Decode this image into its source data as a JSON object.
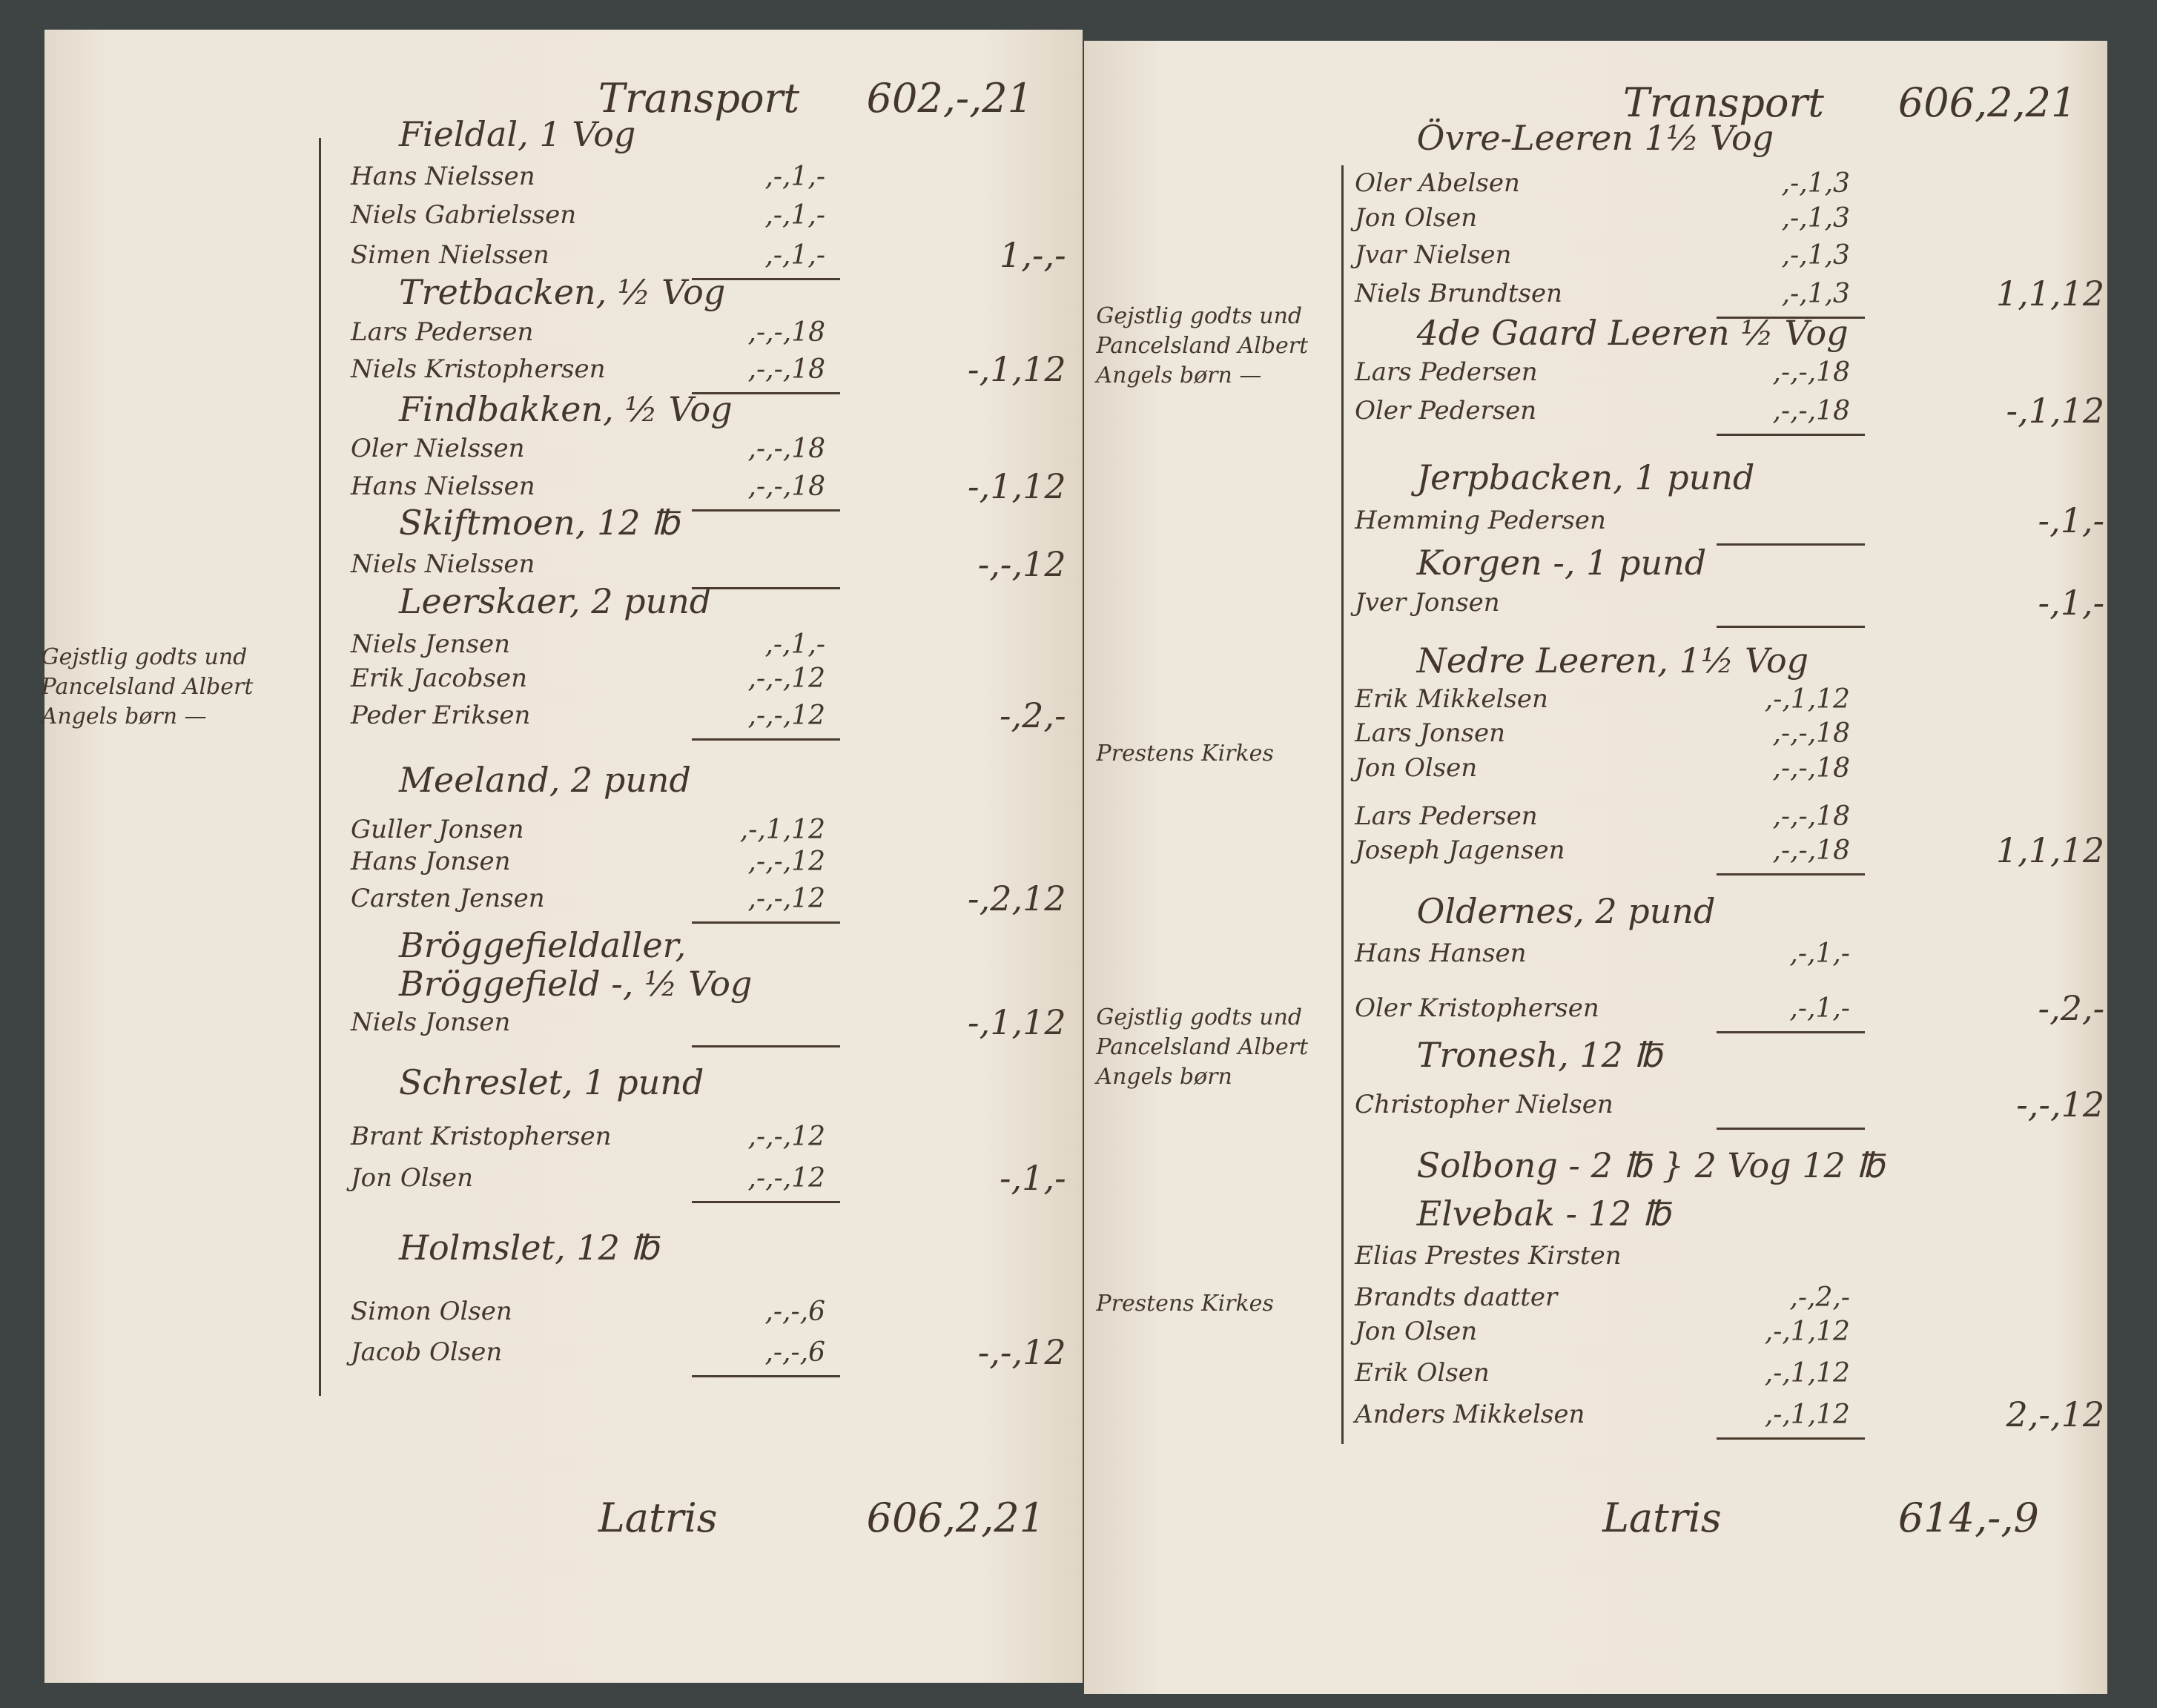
{
  "left_page": {
    "transport_label": "Transport",
    "transport_amount": "602,-,21",
    "rows": [
      {
        "type": "heading",
        "text": "Fieldal, 1 Vog"
      },
      {
        "type": "entry",
        "text": "Hans Nielssen",
        "amount": ",-,1,-"
      },
      {
        "type": "entry",
        "text": "Niels Gabrielssen",
        "amount": ",-,1,-"
      },
      {
        "type": "entry",
        "text": "Simen Nielssen",
        "amount": ",-,1,-",
        "subtotal": "1,-,-"
      },
      {
        "type": "heading",
        "text": "Tretbacken, ½ Vog"
      },
      {
        "type": "entry",
        "text": "Lars Pedersen",
        "amount": ",-,-,18"
      },
      {
        "type": "entry",
        "text": "Niels Kristophersen",
        "amount": ",-,-,18",
        "subtotal": "-,1,12"
      },
      {
        "type": "heading",
        "text": "Findbakken, ½ Vog"
      },
      {
        "type": "entry",
        "text": "Oler Nielssen",
        "amount": ",-,-,18"
      },
      {
        "type": "entry",
        "text": "Hans Nielssen",
        "amount": ",-,-,18",
        "subtotal": "-,1,12"
      },
      {
        "type": "heading",
        "text": "Skiftmoen, 12 ℔"
      },
      {
        "type": "entry",
        "text": "Niels Nielssen",
        "amount": "",
        "subtotal": "-,-,12"
      },
      {
        "type": "heading",
        "text": "Leerskaer, 2 pund"
      },
      {
        "type": "entry",
        "text": "Niels Jensen",
        "amount": ",-,1,-"
      },
      {
        "type": "entry",
        "text": "Erik Jacobsen",
        "amount": ",-,-,12"
      },
      {
        "type": "entry",
        "text": "Peder Eriksen",
        "amount": ",-,-,12",
        "subtotal": "-,2,-"
      },
      {
        "type": "heading",
        "text": "Meeland, 2 pund"
      },
      {
        "type": "entry",
        "text": "Guller Jonsen",
        "amount": ",-,1,12"
      },
      {
        "type": "entry",
        "text": "Hans Jonsen",
        "amount": ",-,-,12"
      },
      {
        "type": "entry",
        "text": "Carsten Jensen",
        "amount": ",-,-,12",
        "subtotal": "-,2,12"
      },
      {
        "type": "heading",
        "text": "Bröggefieldaller,"
      },
      {
        "type": "heading",
        "text": "Bröggefield  -, ½ Vog"
      },
      {
        "type": "entry",
        "text": "Niels Jonsen",
        "amount": "",
        "subtotal": "-,1,12"
      },
      {
        "type": "heading",
        "text": "Schreslet, 1 pund"
      },
      {
        "type": "entry",
        "text": "Brant Kristophersen",
        "amount": ",-,-,12"
      },
      {
        "type": "entry",
        "text": "Jon Olsen",
        "amount": ",-,-,12",
        "subtotal": "-,1,-"
      },
      {
        "type": "heading",
        "text": "Holmslet, 12 ℔"
      },
      {
        "type": "entry",
        "text": "Simon Olsen",
        "amount": ",-,-,6"
      },
      {
        "type": "entry",
        "text": "Jacob Olsen",
        "amount": ",-,-,6",
        "subtotal": "-,-,12"
      }
    ],
    "side_notes": [
      "Gejstlig godts und\nPancelsland Albert\nAngels børn —"
    ],
    "total_label": "Latris",
    "total_amount": "606,2,21"
  },
  "right_page": {
    "transport_label": "Transport",
    "transport_amount": "606,2,21",
    "rows": [
      {
        "type": "heading",
        "text": "Övre-Leeren 1½ Vog"
      },
      {
        "type": "entry",
        "text": "Oler Abelsen",
        "amount": ",-,1,3"
      },
      {
        "type": "entry",
        "text": "Jon Olsen",
        "amount": ",-,1,3"
      },
      {
        "type": "entry",
        "text": "Jvar Nielsen",
        "amount": ",-,1,3"
      },
      {
        "type": "entry",
        "text": "Niels Brundtsen",
        "amount": ",-,1,3",
        "subtotal": "1,1,12"
      },
      {
        "type": "heading",
        "text": "4de Gaard Leeren ½ Vog"
      },
      {
        "type": "entry",
        "text": "Lars Pedersen",
        "amount": ",-,-,18"
      },
      {
        "type": "entry",
        "text": "Oler Pedersen",
        "amount": ",-,-,18",
        "subtotal": "-,1,12"
      },
      {
        "type": "heading",
        "text": "Jerpbacken, 1 pund"
      },
      {
        "type": "entry",
        "text": "Hemming Pedersen",
        "amount": "",
        "subtotal": "-,1,-"
      },
      {
        "type": "heading",
        "text": "Korgen -, 1 pund"
      },
      {
        "type": "entry",
        "text": "Jver Jonsen",
        "amount": "",
        "subtotal": "-,1,-"
      },
      {
        "type": "heading",
        "text": "Nedre Leeren, 1½ Vog"
      },
      {
        "type": "entry",
        "text": "Erik Mikkelsen",
        "amount": ",-,1,12"
      },
      {
        "type": "entry",
        "text": "Lars Jonsen",
        "amount": ",-,-,18"
      },
      {
        "type": "entry",
        "text": "Jon Olsen",
        "amount": ",-,-,18"
      },
      {
        "type": "entry",
        "text": "Lars Pedersen",
        "amount": ",-,-,18"
      },
      {
        "type": "entry",
        "text": "Joseph Jagensen",
        "amount": ",-,-,18",
        "subtotal": "1,1,12"
      },
      {
        "type": "heading",
        "text": "Oldernes, 2 pund"
      },
      {
        "type": "entry",
        "text": "Hans Hansen",
        "amount": ",-,1,-"
      },
      {
        "type": "entry",
        "text": "Oler Kristophersen",
        "amount": ",-,1,-",
        "subtotal": "-,2,-"
      },
      {
        "type": "heading",
        "text": "Tronesh, 12 ℔"
      },
      {
        "type": "entry",
        "text": "Christopher Nielsen",
        "amount": "",
        "subtotal": "-,-,12"
      },
      {
        "type": "heading",
        "text": "Solbong - 2 ℔  } 2 Vog 12 ℔"
      },
      {
        "type": "heading",
        "text": "Elvebak - 12 ℔"
      },
      {
        "type": "entry",
        "text": "Elias Prestes Kirsten",
        "amount": ""
      },
      {
        "type": "entry",
        "text": "      Brandts daatter",
        "amount": ",-,2,-"
      },
      {
        "type": "entry",
        "text": "Jon Olsen",
        "amount": ",-,1,12"
      },
      {
        "type": "entry",
        "text": "Erik Olsen",
        "amount": ",-,1,12"
      },
      {
        "type": "entry",
        "text": "Anders Mikkelsen",
        "amount": ",-,1,12",
        "subtotal": "2,-,12"
      }
    ],
    "side_notes": [
      "Gejstlig godts und\nPancelsland Albert\nAngels børn —",
      "Prestens Kirkes",
      "Gejstlig godts und\nPancelsland Albert\nAngels børn",
      "Prestens Kirkes"
    ],
    "total_label": "Latris",
    "total_amount": "614,-,9"
  },
  "colors": {
    "ink": "#43372b",
    "paper": "#ece5d9",
    "binding": "#3d4443"
  }
}
